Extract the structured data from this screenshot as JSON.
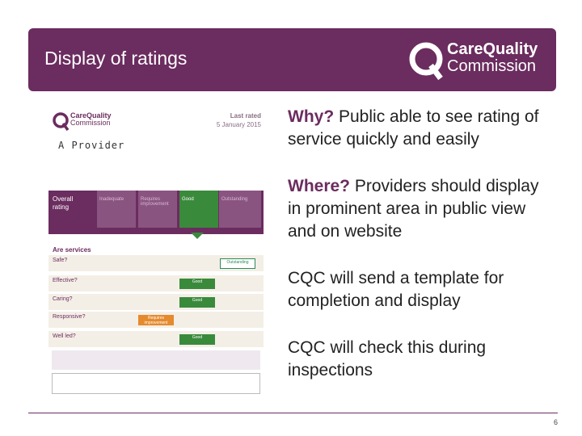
{
  "header": {
    "title": "Display of ratings",
    "logo": [
      "CareQuality",
      "Commission"
    ]
  },
  "poster": {
    "logo": [
      "CareQuality",
      "Commission"
    ],
    "last_rated": [
      "Last rated",
      "5 January 2015"
    ],
    "provider": "A Provider",
    "overall_label": [
      "Overall",
      "rating"
    ],
    "scale": [
      "Inadequate",
      "Requires improvement",
      "Good",
      "Outstanding"
    ],
    "section": "Are services",
    "rows": [
      {
        "question": "Safe?",
        "rating": "Outstanding"
      },
      {
        "question": "Effective?",
        "rating": "Good"
      },
      {
        "question": "Caring?",
        "rating": "Good"
      },
      {
        "question": "Responsive?",
        "rating": "Requires improvement"
      },
      {
        "question": "Well led?",
        "rating": "Good"
      }
    ]
  },
  "points": [
    {
      "lead": "Why?",
      "text": "Public able to see rating of service quickly and easily"
    },
    {
      "lead": "Where?",
      "text": "Providers should display in prominent area in public view and on website"
    },
    {
      "text": "CQC will send a template for completion and display"
    },
    {
      "text": "CQC will check this during inspections"
    }
  ],
  "footer": {
    "page_number": "6"
  }
}
